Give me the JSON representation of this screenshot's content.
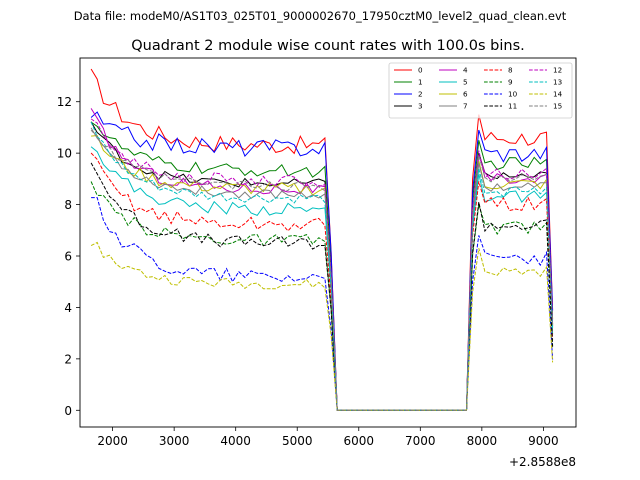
{
  "chart_data": {
    "type": "line",
    "suptitle": "Data file: modeM0/AS1T03_025T01_9000002670_17950cztM0_level2_quad_clean.evt",
    "title": "Quadrant 2 module wise count rates with 100.0s bins.",
    "xlabel": "",
    "ylabel": "",
    "x_offset_label": "+2.8588e8",
    "xlim": [
      1470,
      9530
    ],
    "ylim": [
      -0.65,
      13.7
    ],
    "x_ticks": [
      2000,
      3000,
      4000,
      5000,
      6000,
      7000,
      8000,
      9000
    ],
    "y_ticks": [
      0,
      2,
      4,
      6,
      8,
      10,
      12
    ],
    "grid": false,
    "legend_position": "top-right",
    "legend_columns": 4,
    "segments": [
      {
        "x_start": 1650,
        "x_end": 5550,
        "step": 100
      },
      {
        "x_start": 5650,
        "x_end": 7750,
        "step": 100
      },
      {
        "x_start": 7850,
        "x_end": 9150,
        "step": 100
      }
    ],
    "series": [
      {
        "name": "0",
        "color": "#ff0000",
        "dash": "solid",
        "first": 13.0,
        "level": 10.3,
        "second": 10.6,
        "amp": 0.35
      },
      {
        "name": "1",
        "color": "#008000",
        "dash": "solid",
        "first": 11.4,
        "level": 9.3,
        "second": 9.6,
        "amp": 0.25
      },
      {
        "name": "2",
        "color": "#0000ff",
        "dash": "solid",
        "first": 11.5,
        "level": 10.2,
        "second": 10.0,
        "amp": 0.35
      },
      {
        "name": "3",
        "color": "#000000",
        "dash": "solid",
        "first": 11.2,
        "level": 8.8,
        "second": 9.1,
        "amp": 0.2
      },
      {
        "name": "4",
        "color": "#bf00bf",
        "dash": "solid",
        "first": 11.6,
        "level": 8.6,
        "second": 9.0,
        "amp": 0.25
      },
      {
        "name": "5",
        "color": "#00bfbf",
        "dash": "solid",
        "first": 10.5,
        "level": 7.8,
        "second": 8.3,
        "amp": 0.25
      },
      {
        "name": "6",
        "color": "#bfbf00",
        "dash": "solid",
        "first": 10.8,
        "level": 8.6,
        "second": 8.8,
        "amp": 0.25
      },
      {
        "name": "7",
        "color": "#808080",
        "dash": "solid",
        "first": 11.0,
        "level": 8.4,
        "second": 8.7,
        "amp": 0.2
      },
      {
        "name": "8",
        "color": "#ff0000",
        "dash": "dashed",
        "first": 9.9,
        "level": 7.2,
        "second": 8.0,
        "amp": 0.3
      },
      {
        "name": "9",
        "color": "#008000",
        "dash": "dashed",
        "first": 8.7,
        "level": 6.6,
        "second": 7.1,
        "amp": 0.25
      },
      {
        "name": "10",
        "color": "#0000ff",
        "dash": "dashed",
        "first": 8.5,
        "level": 5.2,
        "second": 5.9,
        "amp": 0.3
      },
      {
        "name": "11",
        "color": "#000000",
        "dash": "dashed",
        "first": 9.7,
        "level": 6.5,
        "second": 7.2,
        "amp": 0.25
      },
      {
        "name": "12",
        "color": "#bf00bf",
        "dash": "dashed",
        "first": 11.3,
        "level": 8.9,
        "second": 9.2,
        "amp": 0.25
      },
      {
        "name": "13",
        "color": "#00bfbf",
        "dash": "dashed",
        "first": 11.1,
        "level": 8.2,
        "second": 8.5,
        "amp": 0.2
      },
      {
        "name": "14",
        "color": "#bfbf00",
        "dash": "dashed",
        "first": 6.6,
        "level": 4.9,
        "second": 5.4,
        "amp": 0.2
      },
      {
        "name": "15",
        "color": "#808080",
        "dash": "dashed",
        "first": 11.0,
        "level": 8.7,
        "second": 9.0,
        "amp": 0.2
      }
    ]
  }
}
